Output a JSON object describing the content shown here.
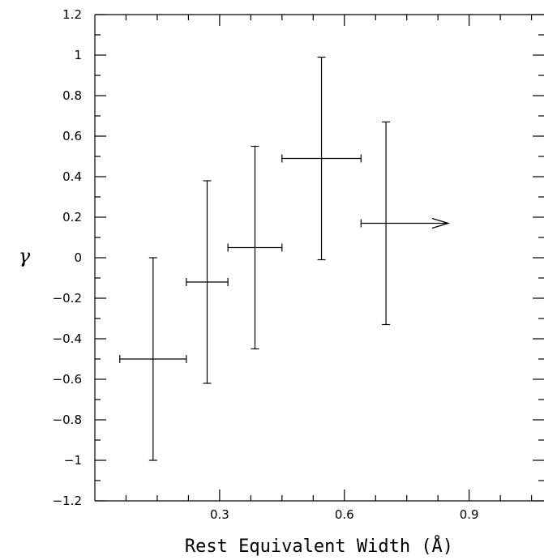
{
  "chart_data": {
    "type": "scatter",
    "title": "",
    "xlabel": "Rest Equivalent Width (Å)",
    "ylabel": "γ",
    "xlim": [
      0,
      1.08
    ],
    "ylim": [
      -1.2,
      1.2
    ],
    "x_ticks": [
      0.3,
      0.6,
      0.9
    ],
    "x_tick_labels": [
      "0.3",
      "0.6",
      "0.9"
    ],
    "y_ticks": [
      -1.2,
      -1.0,
      -0.8,
      -0.6,
      -0.4,
      -0.2,
      0,
      0.2,
      0.4,
      0.6,
      0.8,
      1.0,
      1.2
    ],
    "y_tick_labels": [
      "−1.2",
      "−1",
      "−0.8",
      "−0.6",
      "−0.4",
      "−0.2",
      "0",
      "0.2",
      "0.4",
      "0.6",
      "0.8",
      "1",
      "1.2"
    ],
    "grid": false,
    "points": [
      {
        "x": 0.14,
        "y": -0.5,
        "x_lo": 0.06,
        "x_hi": 0.22,
        "y_lo": -1.0,
        "y_hi": 0.0,
        "lower_limit": false
      },
      {
        "x": 0.27,
        "y": -0.12,
        "x_lo": 0.22,
        "x_hi": 0.32,
        "y_lo": -0.62,
        "y_hi": 0.38,
        "lower_limit": false
      },
      {
        "x": 0.385,
        "y": 0.05,
        "x_lo": 0.32,
        "x_hi": 0.45,
        "y_lo": -0.45,
        "y_hi": 0.55,
        "lower_limit": false
      },
      {
        "x": 0.545,
        "y": 0.49,
        "x_lo": 0.45,
        "x_hi": 0.64,
        "y_lo": -0.01,
        "y_hi": 0.99,
        "lower_limit": false
      },
      {
        "x": 0.7,
        "y": 0.17,
        "x_lo": 0.64,
        "x_hi": 0.85,
        "y_lo": -0.33,
        "y_hi": 0.67,
        "lower_limit": true
      }
    ]
  }
}
